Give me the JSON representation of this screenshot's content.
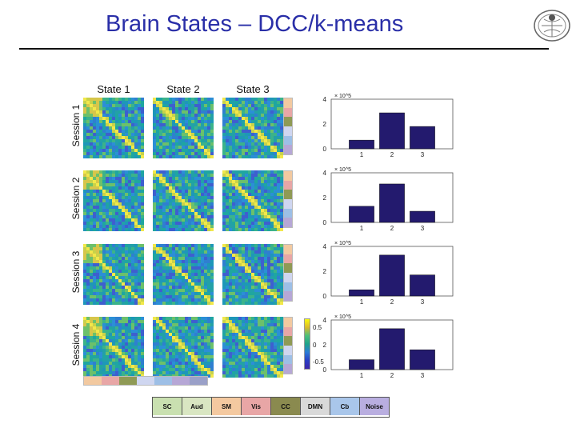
{
  "slide": {
    "title": "Brain States – DCC/k-means"
  },
  "columns": [
    "State 1",
    "State 2",
    "State 3"
  ],
  "rows": [
    "Session 1",
    "Session 2",
    "Session 3",
    "Session 4"
  ],
  "colorbar": {
    "max_label": "0.5",
    "mid_label": "0",
    "min_label": "-0.5"
  },
  "network_colors": [
    "#f2c9a0",
    "#e8a6a6",
    "#8f9a55",
    "#cfd6f0",
    "#9dbfe6",
    "#b6a7d6"
  ],
  "legend": {
    "items": [
      {
        "label": "SC",
        "color": "#c9e0b0"
      },
      {
        "label": "Aud",
        "color": "#d9e6c2"
      },
      {
        "label": "SM",
        "color": "#f4c9a0"
      },
      {
        "label": "Vis",
        "color": "#e8a6a6"
      },
      {
        "label": "CC",
        "color": "#8a8a4f"
      },
      {
        "label": "DMN",
        "color": "#d9d9d9"
      },
      {
        "label": "Cb",
        "color": "#a9c6ea"
      },
      {
        "label": "Noise",
        "color": "#b9aee0"
      }
    ]
  },
  "chart_data": [
    {
      "type": "bar",
      "categories": [
        "1",
        "2",
        "3"
      ],
      "values": [
        0.7,
        2.9,
        1.8
      ],
      "ylim": [
        0,
        4
      ],
      "yticks": [
        "0",
        "2",
        "4"
      ],
      "exponent_label": "× 10^5",
      "bar_color": "#231a6e"
    },
    {
      "type": "bar",
      "categories": [
        "1",
        "2",
        "3"
      ],
      "values": [
        1.3,
        3.1,
        0.9
      ],
      "ylim": [
        0,
        4
      ],
      "yticks": [
        "0",
        "2",
        "4"
      ],
      "exponent_label": "× 10^5",
      "bar_color": "#231a6e"
    },
    {
      "type": "bar",
      "categories": [
        "1",
        "2",
        "3"
      ],
      "values": [
        0.5,
        3.3,
        1.7
      ],
      "ylim": [
        0,
        4
      ],
      "yticks": [
        "0",
        "2",
        "4"
      ],
      "exponent_label": "× 10^5",
      "bar_color": "#231a6e"
    },
    {
      "type": "bar",
      "categories": [
        "1",
        "2",
        "3"
      ],
      "values": [
        0.8,
        3.3,
        1.6
      ],
      "ylim": [
        0,
        4
      ],
      "yticks": [
        "0",
        "2",
        "4"
      ],
      "exponent_label": "× 10^5",
      "bar_color": "#231a6e"
    }
  ]
}
